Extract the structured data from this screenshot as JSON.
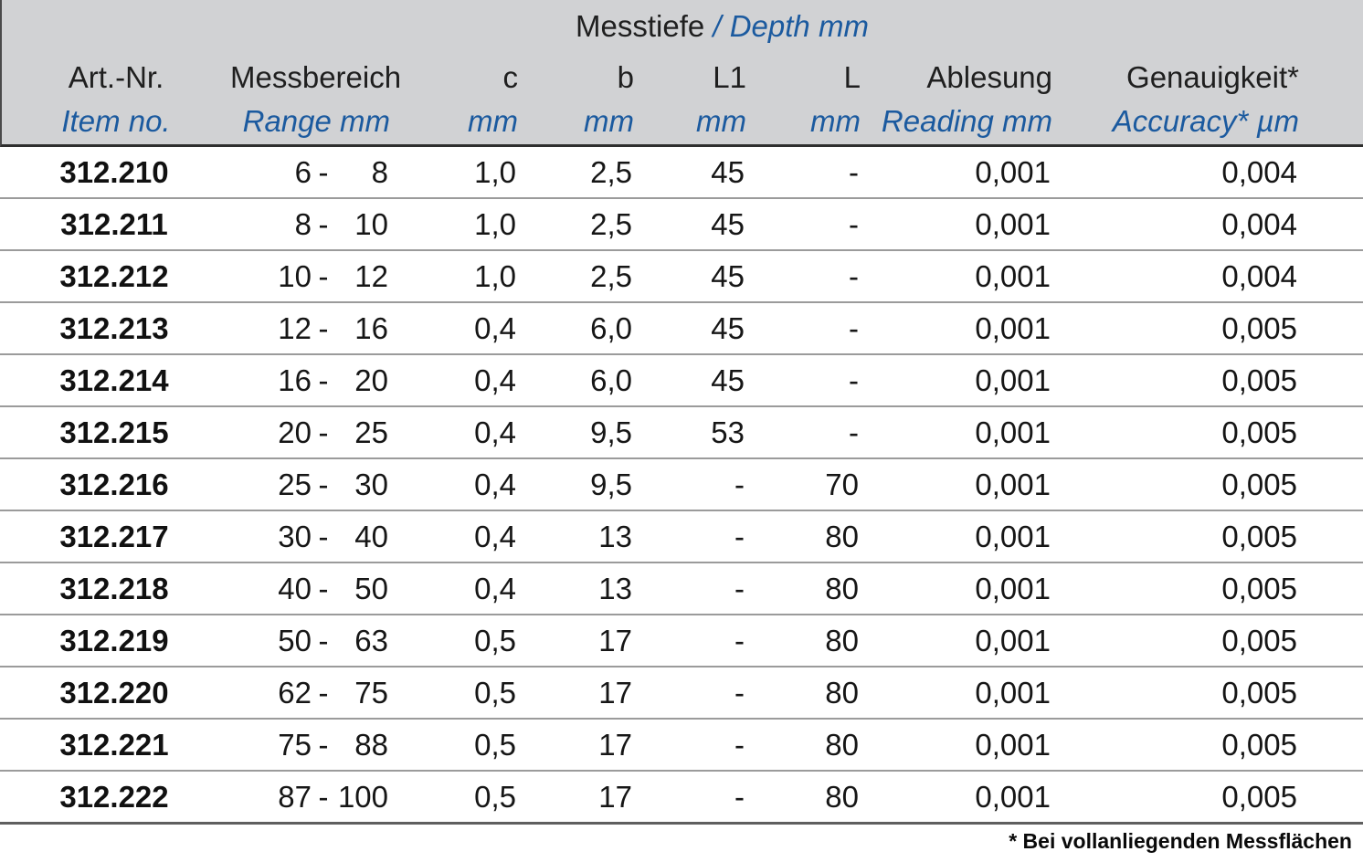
{
  "colors": {
    "accent_blue": "#1b5a9f",
    "header_bg": "#d1d2d4",
    "body_text": "#161616",
    "separator_gray": "#9b9b9b"
  },
  "table": {
    "depth_header": {
      "de": "Messtiefe",
      "en": "/ Depth mm"
    },
    "range_separator": "-",
    "columns": [
      {
        "de": "Art.-Nr.",
        "en": "Item no."
      },
      {
        "de": "Messbereich",
        "en": "Range mm"
      },
      {
        "de": "c",
        "en": "mm"
      },
      {
        "de": "b",
        "en": "mm"
      },
      {
        "de": "L1",
        "en": "mm"
      },
      {
        "de": "L",
        "en": "mm"
      },
      {
        "de": "Ablesung",
        "en": "Reading mm"
      },
      {
        "de": "Genauigkeit*",
        "en": "Accuracy* µm"
      }
    ],
    "rows": [
      {
        "art": "312.210",
        "from": "6",
        "to": "8",
        "c": "1,0",
        "b": "2,5",
        "l1": "45",
        "l": "-",
        "reading": "0,001",
        "accuracy": "0,004"
      },
      {
        "art": "312.211",
        "from": "8",
        "to": "10",
        "c": "1,0",
        "b": "2,5",
        "l1": "45",
        "l": "-",
        "reading": "0,001",
        "accuracy": "0,004"
      },
      {
        "art": "312.212",
        "from": "10",
        "to": "12",
        "c": "1,0",
        "b": "2,5",
        "l1": "45",
        "l": "-",
        "reading": "0,001",
        "accuracy": "0,004"
      },
      {
        "art": "312.213",
        "from": "12",
        "to": "16",
        "c": "0,4",
        "b": "6,0",
        "l1": "45",
        "l": "-",
        "reading": "0,001",
        "accuracy": "0,005"
      },
      {
        "art": "312.214",
        "from": "16",
        "to": "20",
        "c": "0,4",
        "b": "6,0",
        "l1": "45",
        "l": "-",
        "reading": "0,001",
        "accuracy": "0,005"
      },
      {
        "art": "312.215",
        "from": "20",
        "to": "25",
        "c": "0,4",
        "b": "9,5",
        "l1": "53",
        "l": "-",
        "reading": "0,001",
        "accuracy": "0,005"
      },
      {
        "art": "312.216",
        "from": "25",
        "to": "30",
        "c": "0,4",
        "b": "9,5",
        "l1": "-",
        "l": "70",
        "reading": "0,001",
        "accuracy": "0,005"
      },
      {
        "art": "312.217",
        "from": "30",
        "to": "40",
        "c": "0,4",
        "b": "13",
        "l1": "-",
        "l": "80",
        "reading": "0,001",
        "accuracy": "0,005"
      },
      {
        "art": "312.218",
        "from": "40",
        "to": "50",
        "c": "0,4",
        "b": "13",
        "l1": "-",
        "l": "80",
        "reading": "0,001",
        "accuracy": "0,005"
      },
      {
        "art": "312.219",
        "from": "50",
        "to": "63",
        "c": "0,5",
        "b": "17",
        "l1": "-",
        "l": "80",
        "reading": "0,001",
        "accuracy": "0,005"
      },
      {
        "art": "312.220",
        "from": "62",
        "to": "75",
        "c": "0,5",
        "b": "17",
        "l1": "-",
        "l": "80",
        "reading": "0,001",
        "accuracy": "0,005"
      },
      {
        "art": "312.221",
        "from": "75",
        "to": "88",
        "c": "0,5",
        "b": "17",
        "l1": "-",
        "l": "80",
        "reading": "0,001",
        "accuracy": "0,005"
      },
      {
        "art": "312.222",
        "from": "87",
        "to": "100",
        "c": "0,5",
        "b": "17",
        "l1": "-",
        "l": "80",
        "reading": "0,001",
        "accuracy": "0,005"
      }
    ],
    "footnote": "* Bei vollanliegenden Messflächen"
  }
}
